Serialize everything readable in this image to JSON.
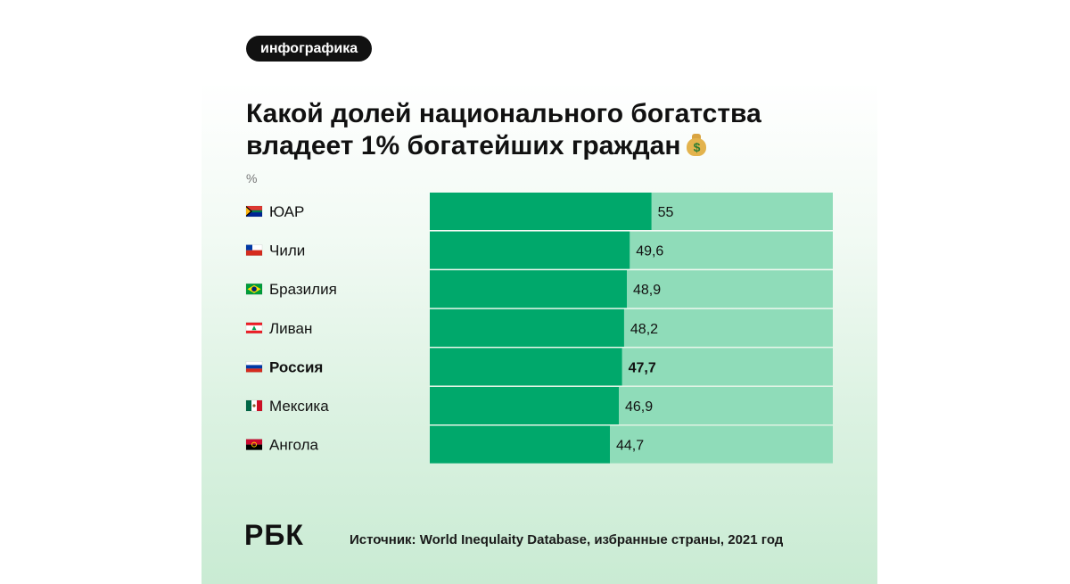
{
  "header": {
    "tag": "инфографика",
    "title_line1": "Какой долей национального богатства",
    "title_line2": "владеет  1%  богатейших граждан",
    "title_icon": "money-bag-icon",
    "unit": "%"
  },
  "footer": {
    "logo": "РБК",
    "source": "Источник: World Inequlaity Database, избранные страны, 2021 год"
  },
  "colors": {
    "bar_fill": "#00a86b",
    "bar_track": "#8fdcb9",
    "text": "#111111"
  },
  "flags": {
    "ЮАР": "south-africa-flag-icon",
    "Чили": "chile-flag-icon",
    "Бразилия": "brazil-flag-icon",
    "Ливан": "lebanon-flag-icon",
    "Россия": "russia-flag-icon",
    "Мексика": "mexico-flag-icon",
    "Ангола": "angola-flag-icon"
  },
  "chart_data": {
    "type": "bar",
    "orientation": "horizontal",
    "title": "Какой долей национального богатства владеет 1% богатейших граждан",
    "unit": "%",
    "categories": [
      "ЮАР",
      "Чили",
      "Бразилия",
      "Ливан",
      "Россия",
      "Мексика",
      "Ангола"
    ],
    "values": [
      55,
      49.6,
      48.9,
      48.2,
      47.7,
      46.9,
      44.7
    ],
    "value_labels": [
      "55",
      "49,6",
      "48,9",
      "48,2",
      "47,7",
      "46,9",
      "44,7"
    ],
    "highlight": "Россия",
    "xlim": [
      0,
      100
    ]
  }
}
